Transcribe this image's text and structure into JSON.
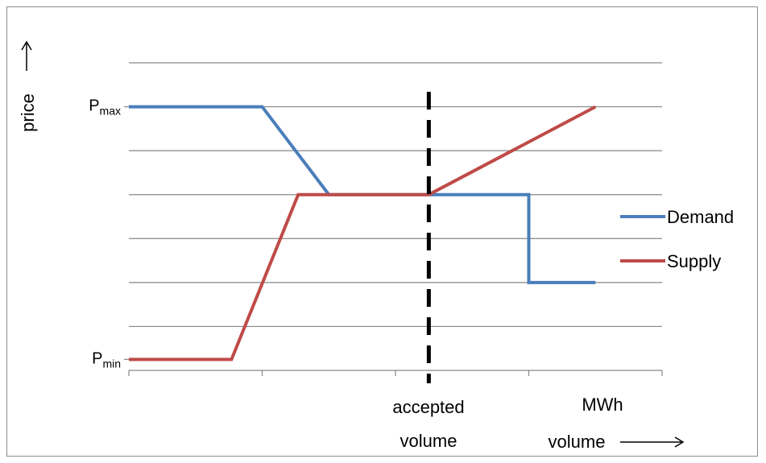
{
  "chart_data": {
    "type": "line",
    "title": "",
    "xlabel": "volume",
    "ylabel": "price",
    "xlim": [
      0,
      4
    ],
    "ylim": [
      0,
      7
    ],
    "grid": true,
    "legend_position": "right",
    "y_tick_labels": [
      {
        "text_main": "P",
        "text_sub": "max",
        "value": 6
      },
      {
        "text_main": "P",
        "text_sub": "min",
        "value": 0.25
      }
    ],
    "annotations": {
      "accepted_line1": "accepted",
      "accepted_line2": "volume",
      "unit": "MWh",
      "accepted_volume_x": 2.25
    },
    "series": [
      {
        "name": "Demand",
        "color": "#4a7ebb",
        "points": [
          [
            0,
            6
          ],
          [
            1,
            6
          ],
          [
            1.5,
            4
          ],
          [
            3,
            4
          ],
          [
            3,
            2
          ],
          [
            3.5,
            2
          ]
        ]
      },
      {
        "name": "Supply",
        "color": "#be4b48",
        "points": [
          [
            0,
            0.25
          ],
          [
            0.77,
            0.25
          ],
          [
            1.27,
            4
          ],
          [
            2.25,
            4
          ],
          [
            3.5,
            6
          ]
        ]
      }
    ]
  }
}
